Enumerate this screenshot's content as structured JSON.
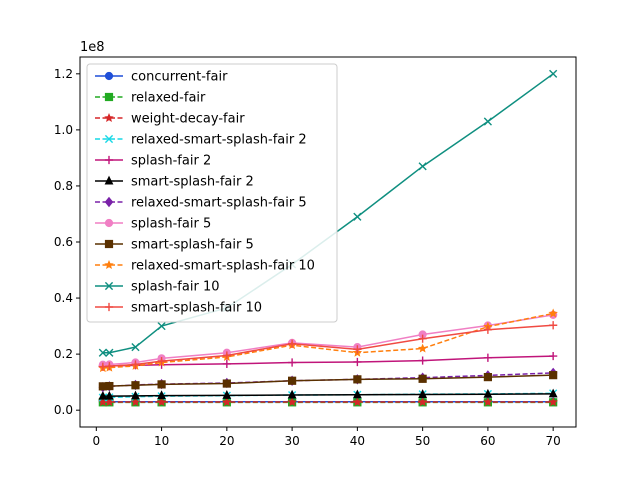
{
  "chart_data": {
    "type": "line",
    "title": "",
    "xlabel": "",
    "ylabel": "",
    "y_offset_label": "1e8",
    "y_scale": 100000000,
    "x": [
      1,
      2,
      6,
      10,
      20,
      30,
      40,
      50,
      60,
      70
    ],
    "xlim": [
      -2.5,
      73.5
    ],
    "ylim": [
      -0.06,
      1.26
    ],
    "xticks": [
      0,
      10,
      20,
      30,
      40,
      50,
      60,
      70
    ],
    "yticks": [
      0.0,
      0.2,
      0.4,
      0.6,
      0.8,
      1.0,
      1.2
    ],
    "ytick_labels": [
      "0.0",
      "0.2",
      "0.4",
      "0.6",
      "0.8",
      "1.0",
      "1.2"
    ],
    "grid": false,
    "legend_position": "upper-left",
    "series": [
      {
        "name": "concurrent-fair",
        "color": "#1f4fd8",
        "marker": "circle",
        "dash": "solid",
        "values": [
          0.03,
          0.03,
          0.03,
          0.03,
          0.03,
          0.03,
          0.03,
          0.03,
          0.03,
          0.03
        ]
      },
      {
        "name": "relaxed-fair",
        "color": "#22aa22",
        "marker": "square",
        "dash": "dashed",
        "values": [
          0.028,
          0.028,
          0.028,
          0.028,
          0.028,
          0.028,
          0.028,
          0.028,
          0.028,
          0.028
        ]
      },
      {
        "name": "weight-decay-fair",
        "color": "#d62728",
        "marker": "star",
        "dash": "dashed",
        "values": [
          0.029,
          0.029,
          0.029,
          0.029,
          0.029,
          0.029,
          0.029,
          0.029,
          0.029,
          0.029
        ]
      },
      {
        "name": "relaxed-smart-splash-fair 2",
        "color": "#17d8e6",
        "marker": "x",
        "dash": "dashed",
        "values": [
          0.045,
          0.046,
          0.048,
          0.05,
          0.052,
          0.054,
          0.055,
          0.057,
          0.058,
          0.06
        ]
      },
      {
        "name": "splash-fair 2",
        "color": "#c0157a",
        "marker": "plus",
        "dash": "solid",
        "values": [
          0.158,
          0.158,
          0.16,
          0.162,
          0.165,
          0.17,
          0.172,
          0.177,
          0.187,
          0.193
        ]
      },
      {
        "name": "smart-splash-fair 2",
        "color": "#000000",
        "marker": "triangle",
        "dash": "solid",
        "values": [
          0.05,
          0.05,
          0.051,
          0.052,
          0.053,
          0.054,
          0.055,
          0.056,
          0.057,
          0.058
        ]
      },
      {
        "name": "relaxed-smart-splash-fair 5",
        "color": "#7a22a8",
        "marker": "diamond",
        "dash": "dashed",
        "values": [
          0.082,
          0.085,
          0.09,
          0.093,
          0.097,
          0.105,
          0.11,
          0.116,
          0.124,
          0.133
        ]
      },
      {
        "name": "splash-fair 5",
        "color": "#f07fc4",
        "marker": "circle",
        "dash": "solid",
        "values": [
          0.162,
          0.163,
          0.17,
          0.185,
          0.205,
          0.24,
          0.225,
          0.27,
          0.302,
          0.34
        ]
      },
      {
        "name": "smart-splash-fair 5",
        "color": "#5a3000",
        "marker": "square",
        "dash": "solid",
        "values": [
          0.085,
          0.086,
          0.089,
          0.092,
          0.095,
          0.105,
          0.11,
          0.112,
          0.118,
          0.125
        ]
      },
      {
        "name": "relaxed-smart-splash-fair 10",
        "color": "#ff7f0e",
        "marker": "star",
        "dash": "dashed",
        "values": [
          0.15,
          0.152,
          0.158,
          0.17,
          0.19,
          0.232,
          0.205,
          0.22,
          0.298,
          0.345
        ]
      },
      {
        "name": "splash-fair 10",
        "color": "#0f8f80",
        "marker": "x",
        "dash": "solid",
        "values": [
          0.205,
          0.205,
          0.225,
          0.3,
          0.365,
          0.52,
          0.69,
          0.87,
          1.03,
          1.2
        ]
      },
      {
        "name": "smart-splash-fair 10",
        "color": "#f04a42",
        "marker": "plus",
        "dash": "solid",
        "values": [
          0.155,
          0.157,
          0.163,
          0.175,
          0.195,
          0.237,
          0.217,
          0.255,
          0.287,
          0.303
        ]
      }
    ]
  }
}
